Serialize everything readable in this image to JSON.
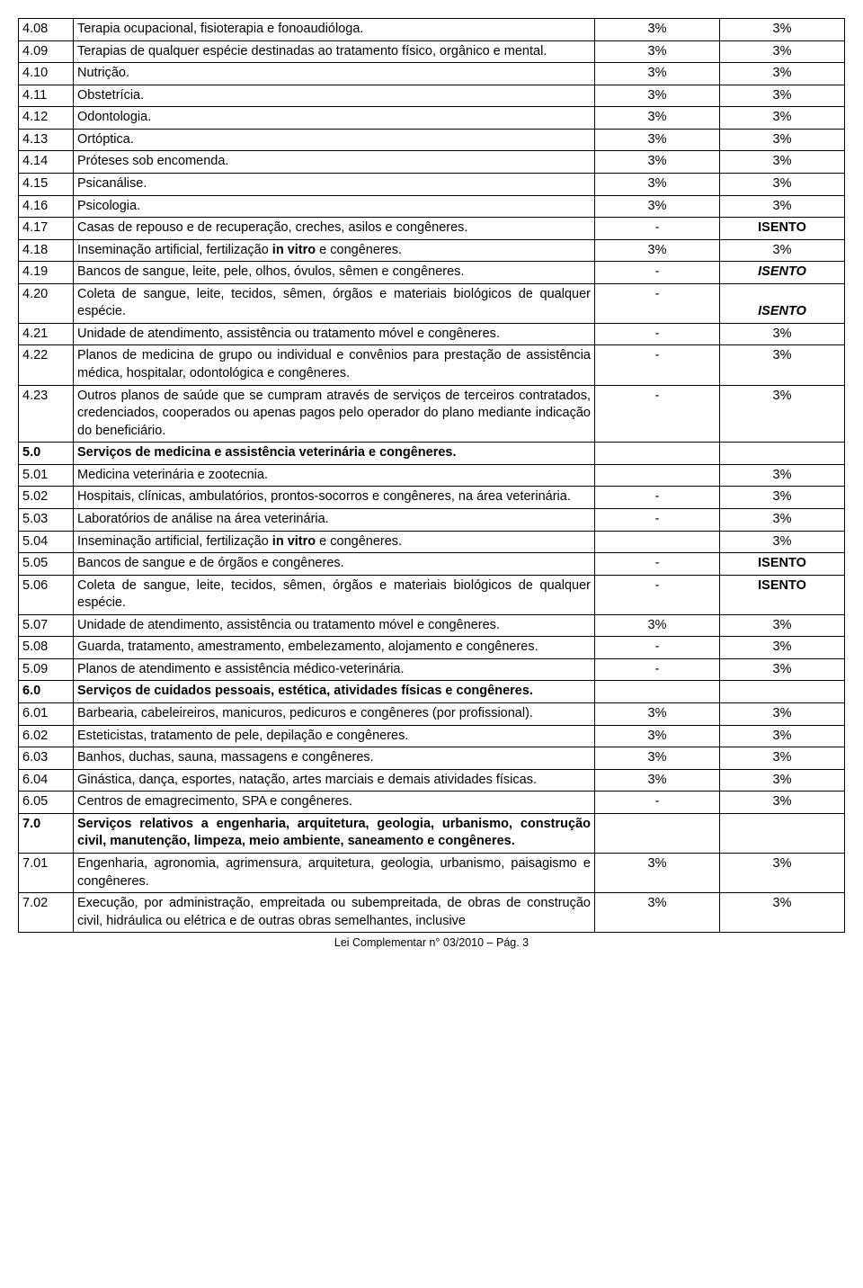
{
  "footer": "Lei Complementar n° 03/2010 – Pág. 3",
  "rows": [
    {
      "code": "4.08",
      "desc": "Terapia ocupacional, fisioterapia e fonoaudióloga.",
      "c3": "3%",
      "c4": "3%",
      "bold": false
    },
    {
      "code": "4.09",
      "desc": "Terapias de qualquer espécie destinadas ao tratamento físico, orgânico e mental.",
      "c3": "3%",
      "c4": "3%",
      "bold": false
    },
    {
      "code": "4.10",
      "desc": "Nutrição.",
      "c3": "3%",
      "c4": "3%",
      "bold": false
    },
    {
      "code": "4.11",
      "desc": "Obstetrícia.",
      "c3": "3%",
      "c4": "3%",
      "bold": false
    },
    {
      "code": "4.12",
      "desc": "Odontologia.",
      "c3": "3%",
      "c4": "3%",
      "bold": false
    },
    {
      "code": "4.13",
      "desc": "Ortóptica.",
      "c3": "3%",
      "c4": "3%",
      "bold": false
    },
    {
      "code": "4.14",
      "desc": "Próteses sob encomenda.",
      "c3": "3%",
      "c4": "3%",
      "bold": false
    },
    {
      "code": "4.15",
      "desc": "Psicanálise.",
      "c3": "3%",
      "c4": "3%",
      "bold": false
    },
    {
      "code": "4.16",
      "desc": "Psicologia.",
      "c3": "3%",
      "c4": "3%",
      "bold": false
    },
    {
      "code": "4.17",
      "desc": "Casas de repouso e de recuperação, creches, asilos e congêneres.",
      "c3": "-",
      "c4": "ISENTO",
      "c4bold": true,
      "bold": false
    },
    {
      "code": "4.18",
      "desc": "Inseminação artificial, fertilização <b>in vitro</b> e congêneres.",
      "c3": "3%",
      "c4": "3%",
      "bold": false,
      "html": true
    },
    {
      "code": "4.19",
      "desc": "Bancos de sangue, leite, pele, olhos, óvulos, sêmen e congêneres.",
      "c3": "-",
      "c4": "ISENTO",
      "c4italic": true,
      "c4bold": true,
      "bold": false,
      "c4valign": "bottom"
    },
    {
      "code": "4.20",
      "desc": "Coleta de sangue, leite, tecidos, sêmen, órgãos e materiais biológicos de qualquer espécie.",
      "c3": "-",
      "c4": "ISENTO",
      "c4italic": true,
      "c4bold": true,
      "bold": false,
      "c4valign": "bottom"
    },
    {
      "code": "4.21",
      "desc": "Unidade de atendimento, assistência ou tratamento móvel e congêneres.",
      "c3": "-",
      "c4": "3%",
      "bold": false
    },
    {
      "code": "4.22",
      "desc": "Planos de medicina de grupo ou individual e convênios para prestação de assistência médica, hospitalar, odontológica e congêneres.",
      "c3": "-",
      "c4": "3%",
      "bold": false
    },
    {
      "code": "4.23",
      "desc": "Outros planos de saúde que se cumpram através de serviços de terceiros contratados, credenciados, cooperados ou apenas pagos pelo operador do plano mediante indicação do beneficiário.",
      "c3": "-",
      "c4": "3%",
      "bold": false
    },
    {
      "code": "5.0",
      "desc": "Serviços de medicina e assistência veterinária e congêneres.",
      "c3": "",
      "c4": "",
      "bold": true
    },
    {
      "code": "5.01",
      "desc": "Medicina veterinária e zootecnia.",
      "c3": "",
      "c4": "3%",
      "bold": false
    },
    {
      "code": "5.02",
      "desc": "Hospitais, clínicas, ambulatórios, prontos-socorros e congêneres, na área veterinária.",
      "c3": "-",
      "c4": "3%",
      "bold": false
    },
    {
      "code": "5.03",
      "desc": "Laboratórios de análise na área veterinária.",
      "c3": "-",
      "c4": "3%",
      "bold": false
    },
    {
      "code": "5.04",
      "desc": "Inseminação artificial, fertilização <b>in vitro</b> e congêneres.",
      "c3": "",
      "c4": "3%",
      "bold": false,
      "html": true
    },
    {
      "code": "5.05",
      "desc": "Bancos de sangue e de órgãos e congêneres.",
      "c3": "-",
      "c4": "ISENTO",
      "c4bold": true,
      "bold": false
    },
    {
      "code": "5.06",
      "desc": "Coleta de sangue, leite, tecidos, sêmen, órgãos e materiais biológicos de qualquer espécie.",
      "c3": "-",
      "c4": "ISENTO",
      "c4bold": true,
      "bold": false
    },
    {
      "code": "5.07",
      "desc": "Unidade de atendimento, assistência ou tratamento móvel e congêneres.",
      "c3": "3%",
      "c4": "3%",
      "bold": false
    },
    {
      "code": "5.08",
      "desc": "Guarda, tratamento, amestramento, embelezamento, alojamento e congêneres.",
      "c3": "-",
      "c4": "3%",
      "bold": false
    },
    {
      "code": "5.09",
      "desc": "Planos de atendimento e assistência médico-veterinária.",
      "c3": "-",
      "c4": "3%",
      "bold": false
    },
    {
      "code": "6.0",
      "desc": "Serviços de cuidados pessoais, estética, atividades físicas e congêneres.",
      "c3": "",
      "c4": "",
      "bold": true
    },
    {
      "code": "6.01",
      "desc": "Barbearia, cabeleireiros, manicuros, pedicuros e congêneres (por profissional).",
      "c3": "3%",
      "c4": "3%",
      "bold": false
    },
    {
      "code": "6.02",
      "desc": "Esteticistas, tratamento de pele, depilação e congêneres.",
      "c3": "3%",
      "c4": "3%",
      "bold": false
    },
    {
      "code": "6.03",
      "desc": "Banhos, duchas, sauna, massagens e congêneres.",
      "c3": "3%",
      "c4": "3%",
      "bold": false
    },
    {
      "code": "6.04",
      "desc": "Ginástica, dança, esportes, natação, artes marciais e demais atividades físicas.",
      "c3": "3%",
      "c4": "3%",
      "bold": false
    },
    {
      "code": "6.05",
      "desc": "Centros de emagrecimento, SPA e congêneres.",
      "c3": "-",
      "c4": "3%",
      "bold": false
    },
    {
      "code": "7.0",
      "desc": "Serviços relativos a engenharia, arquitetura, geologia, urbanismo, construção civil, manutenção, limpeza, meio ambiente, saneamento e congêneres.",
      "c3": "",
      "c4": "",
      "bold": true
    },
    {
      "code": "7.01",
      "desc": "Engenharia, agronomia, agrimensura, arquitetura, geologia, urbanismo, paisagismo e congêneres.",
      "c3": "3%",
      "c4": "3%",
      "bold": false
    },
    {
      "code": "7.02",
      "desc": "Execução, por administração, empreitada ou subempreitada, de obras de construção civil, hidráulica ou elétrica e de outras obras semelhantes, inclusive",
      "c3": "3%",
      "c4": "3%",
      "bold": false
    }
  ]
}
